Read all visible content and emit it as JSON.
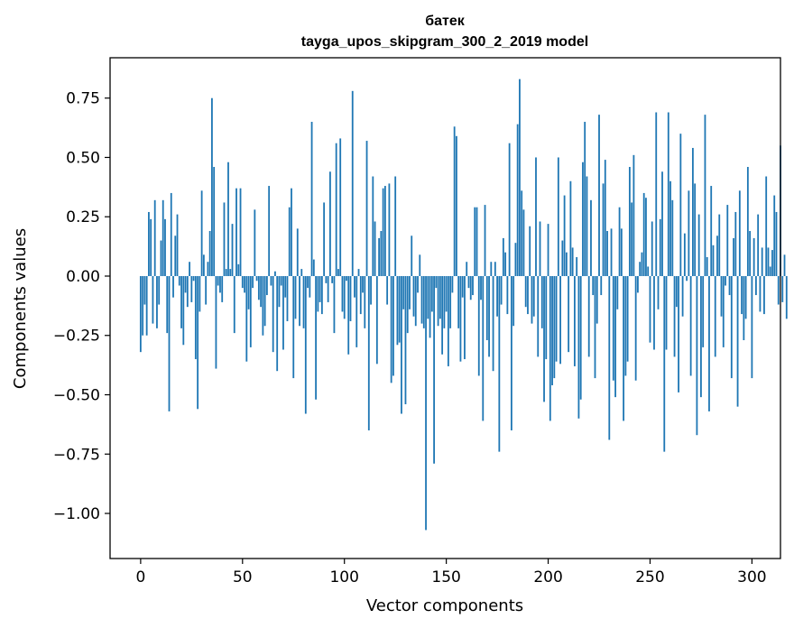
{
  "chart_data": {
    "type": "bar",
    "title": "батек",
    "subtitle": "tayga_upos_skipgram_300_2_2019 model",
    "xlabel": "Vector components",
    "ylabel": "Components values",
    "xlim": [
      -15,
      314
    ],
    "ylim": [
      -1.19,
      0.92
    ],
    "xticks": [
      0,
      50,
      100,
      150,
      200,
      250,
      300
    ],
    "yticks": [
      0.75,
      0.5,
      0.25,
      0.0,
      -0.25,
      -0.5,
      -0.75,
      -1.0
    ],
    "ytick_labels": [
      "0.75",
      "0.50",
      "0.25",
      "0.00",
      "−0.25",
      "−0.50",
      "−0.75",
      "−1.00"
    ],
    "grid": false,
    "bar_color": "#1f77b4",
    "values": [
      -0.32,
      -0.25,
      -0.12,
      -0.25,
      0.27,
      0.24,
      -0.2,
      0.32,
      -0.22,
      -0.12,
      0.15,
      0.32,
      0.24,
      -0.24,
      -0.57,
      0.35,
      -0.09,
      0.17,
      0.26,
      -0.04,
      -0.22,
      -0.29,
      -0.07,
      -0.13,
      0.06,
      -0.11,
      -0.02,
      -0.35,
      -0.56,
      -0.15,
      0.36,
      0.09,
      -0.12,
      0.06,
      0.19,
      0.75,
      0.46,
      -0.39,
      -0.04,
      -0.07,
      -0.11,
      0.31,
      0.03,
      0.48,
      0.03,
      0.22,
      -0.24,
      0.37,
      0.05,
      0.37,
      -0.05,
      -0.07,
      -0.36,
      -0.14,
      -0.3,
      -0.05,
      0.28,
      -0.02,
      -0.1,
      -0.13,
      -0.25,
      -0.21,
      -0.08,
      0.38,
      -0.04,
      -0.32,
      0.02,
      -0.4,
      -0.13,
      -0.04,
      -0.31,
      -0.09,
      -0.19,
      0.29,
      0.37,
      -0.43,
      -0.18,
      0.2,
      -0.21,
      0.03,
      -0.22,
      -0.58,
      -0.05,
      -0.09,
      0.65,
      0.07,
      -0.52,
      -0.15,
      -0.11,
      -0.16,
      0.31,
      -0.03,
      -0.11,
      0.44,
      -0.03,
      -0.24,
      0.56,
      0.03,
      0.58,
      -0.15,
      -0.18,
      -0.02,
      -0.33,
      -0.19,
      0.78,
      -0.09,
      -0.3,
      0.03,
      -0.16,
      -0.07,
      -0.22,
      0.57,
      -0.65,
      -0.12,
      0.42,
      0.23,
      -0.37,
      0.16,
      0.19,
      0.37,
      0.38,
      -0.12,
      0.39,
      -0.45,
      -0.42,
      0.42,
      -0.29,
      -0.28,
      -0.58,
      -0.14,
      -0.54,
      -0.24,
      -0.14,
      0.17,
      -0.17,
      -0.21,
      -0.07,
      0.09,
      -0.2,
      -0.22,
      -1.07,
      -0.18,
      -0.26,
      -0.15,
      -0.79,
      -0.05,
      -0.21,
      -0.18,
      -0.33,
      -0.22,
      -0.15,
      -0.38,
      -0.22,
      -0.07,
      0.63,
      0.59,
      -0.22,
      -0.36,
      -0.09,
      -0.35,
      0.06,
      -0.05,
      -0.1,
      -0.08,
      0.29,
      0.29,
      -0.42,
      -0.1,
      -0.61,
      0.3,
      -0.27,
      -0.34,
      0.06,
      -0.4,
      0.06,
      -0.17,
      -0.74,
      -0.12,
      0.16,
      0.1,
      -0.16,
      0.56,
      -0.65,
      -0.21,
      0.14,
      0.64,
      0.83,
      0.36,
      0.28,
      -0.13,
      -0.16,
      0.21,
      -0.2,
      -0.17,
      0.5,
      -0.34,
      0.23,
      -0.22,
      -0.53,
      -0.35,
      0.22,
      -0.61,
      -0.46,
      -0.43,
      -0.36,
      0.5,
      -0.37,
      0.15,
      0.34,
      0.1,
      -0.32,
      0.4,
      0.12,
      -0.38,
      0.08,
      -0.6,
      -0.52,
      0.48,
      0.65,
      0.42,
      -0.34,
      0.32,
      -0.08,
      -0.43,
      -0.2,
      0.68,
      -0.08,
      0.39,
      0.49,
      0.19,
      -0.69,
      0.2,
      -0.44,
      -0.51,
      -0.14,
      0.29,
      0.2,
      -0.61,
      -0.42,
      -0.36,
      0.46,
      0.31,
      0.51,
      -0.44,
      -0.07,
      0.06,
      0.1,
      0.35,
      0.33,
      0.04,
      -0.28,
      0.23,
      -0.31,
      0.69,
      -0.14,
      0.24,
      0.44,
      -0.74,
      -0.31,
      0.69,
      0.4,
      0.32,
      -0.34,
      -0.13,
      -0.49,
      0.6,
      -0.17,
      0.18,
      -0.02,
      0.36,
      -0.42,
      0.54,
      0.39,
      -0.67,
      0.26,
      -0.51,
      -0.3,
      0.68,
      0.08,
      -0.57,
      0.38,
      0.13,
      -0.34,
      0.17,
      0.26,
      -0.17,
      -0.3,
      -0.04,
      0.3,
      -0.08,
      -0.43,
      0.16,
      0.27,
      -0.55,
      0.36,
      -0.16,
      -0.27,
      -0.18,
      0.46,
      0.19,
      -0.43,
      0.16,
      -0.08,
      0.26,
      -0.15,
      0.12,
      -0.16,
      0.42,
      0.12,
      0.04,
      0.11,
      0.34,
      0.27,
      -0.12,
      0.55,
      -0.11,
      0.09,
      -0.18
    ]
  }
}
